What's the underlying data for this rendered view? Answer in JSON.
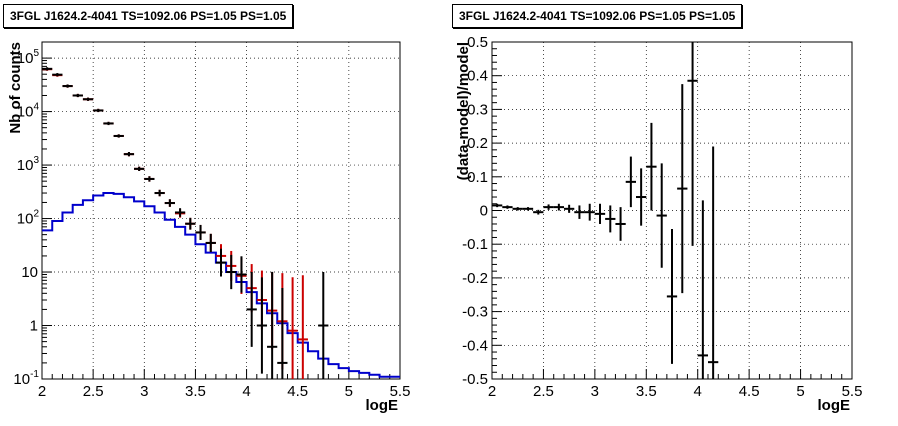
{
  "chart_data": [
    {
      "type": "line",
      "title": "3FGL J1624.2-4041 TS=1092.06 PS=1.05 PS=1.05",
      "xlabel": "logE",
      "ylabel": "Nb of counts",
      "xlim": [
        2,
        5.5
      ],
      "ylim": [
        0.1,
        200000
      ],
      "yscale": "log",
      "grid": true,
      "x_ticks": [
        "2",
        "2.5",
        "3",
        "3.5",
        "4",
        "4.5",
        "5",
        "5.5"
      ],
      "y_ticks": [
        {
          "value": 0.1,
          "label": "10",
          "exp": "-1"
        },
        {
          "value": 1,
          "label": "1",
          "exp": ""
        },
        {
          "value": 10,
          "label": "10",
          "exp": ""
        },
        {
          "value": 100,
          "label": "10",
          "exp": "2"
        },
        {
          "value": 1000,
          "label": "10",
          "exp": "3"
        },
        {
          "value": 10000,
          "label": "10",
          "exp": "4"
        },
        {
          "value": 100000,
          "label": "10",
          "exp": "5"
        }
      ],
      "bin_width": 0.1,
      "series": [
        {
          "color": "#0000cc",
          "style": "step",
          "x": [
            2.05,
            2.15,
            2.25,
            2.35,
            2.45,
            2.55,
            2.65,
            2.75,
            2.85,
            2.95,
            3.05,
            3.15,
            3.25,
            3.35,
            3.45,
            3.55,
            3.65,
            3.75,
            3.85,
            3.95,
            4.05,
            4.15,
            4.25,
            4.35,
            4.45,
            4.55,
            4.65,
            4.75,
            4.85,
            4.95,
            5.05,
            5.15,
            5.25,
            5.35,
            5.45
          ],
          "y": [
            60,
            90,
            130,
            180,
            220,
            270,
            300,
            290,
            250,
            210,
            170,
            130,
            95,
            70,
            50,
            33,
            23,
            15,
            10,
            6.5,
            4.2,
            2.6,
            1.7,
            1.1,
            0.72,
            0.48,
            0.33,
            0.24,
            0.19,
            0.16,
            0.14,
            0.13,
            0.12,
            0.11,
            0.11
          ]
        },
        {
          "color": "#cc0000",
          "style": "errorbar",
          "x": [
            2.05,
            2.15,
            2.25,
            2.35,
            2.45,
            2.55,
            2.65,
            2.75,
            2.85,
            2.95,
            3.05,
            3.15,
            3.25,
            3.35,
            3.45,
            3.55,
            3.65,
            3.75,
            3.85,
            3.95,
            4.05,
            4.15,
            4.25,
            4.35,
            4.45,
            4.55
          ],
          "y": [
            62000,
            48000,
            30000,
            20000,
            17000,
            10500,
            6000,
            3500,
            1600,
            850,
            550,
            300,
            195,
            125,
            80,
            55,
            35,
            20,
            13,
            8.5,
            5,
            3,
            1.9,
            1.2,
            0.8,
            0.55
          ],
          "yerr": [
            0.03,
            0.03,
            0.03,
            0.03,
            0.03,
            0.03,
            0.03,
            0.03,
            0.04,
            0.04,
            0.05,
            0.06,
            0.07,
            0.08,
            0.11,
            0.14,
            0.17,
            0.22,
            0.28,
            0.34,
            0.45,
            0.55,
            0.72,
            0.9,
            1.0,
            1.2
          ]
        },
        {
          "color": "#000000",
          "style": "errorbar",
          "x": [
            2.05,
            2.15,
            2.25,
            2.35,
            2.45,
            2.55,
            2.65,
            2.75,
            2.85,
            2.95,
            3.05,
            3.15,
            3.25,
            3.35,
            3.45,
            3.55,
            3.65,
            3.75,
            3.85,
            3.95,
            4.05,
            4.15,
            4.25,
            4.35,
            4.75
          ],
          "y": [
            63000,
            49000,
            30000,
            20000,
            17000,
            10500,
            6000,
            3500,
            1600,
            850,
            550,
            300,
            195,
            130,
            80,
            55,
            35,
            15,
            10,
            9,
            2,
            1,
            0.4,
            0.2,
            1
          ],
          "yerr": [
            0.03,
            0.03,
            0.03,
            0.03,
            0.03,
            0.03,
            0.03,
            0.03,
            0.04,
            0.04,
            0.05,
            0.06,
            0.07,
            0.08,
            0.11,
            0.14,
            0.17,
            0.26,
            0.32,
            0.34,
            0.7,
            0.9,
            1.4,
            1.4,
            1.0
          ]
        }
      ]
    },
    {
      "type": "scatter",
      "title": "3FGL J1624.2-4041 TS=1092.06 PS=1.05 PS=1.05",
      "xlabel": "logE",
      "ylabel": "(data-model)/model",
      "xlim": [
        2,
        5.5
      ],
      "ylim": [
        -0.5,
        0.5
      ],
      "grid": true,
      "x_ticks": [
        "2",
        "2.5",
        "3",
        "3.5",
        "4",
        "4.5",
        "5",
        "5.5"
      ],
      "y_ticks": [
        "-0.5",
        "-0.4",
        "-0.3",
        "-0.2",
        "-0.1",
        "0",
        "0.1",
        "0.2",
        "0.3",
        "0.4",
        "0.5"
      ],
      "bin_width": 0.1,
      "series": [
        {
          "color": "#000000",
          "style": "errorbar",
          "x": [
            2.05,
            2.15,
            2.25,
            2.35,
            2.45,
            2.55,
            2.65,
            2.75,
            2.85,
            2.95,
            3.05,
            3.15,
            3.25,
            3.35,
            3.45,
            3.55,
            3.65,
            3.75,
            3.85,
            3.95,
            4.05,
            4.15
          ],
          "y": [
            0.015,
            0.01,
            0.005,
            0.005,
            -0.005,
            0.01,
            0.01,
            0.005,
            -0.005,
            -0.005,
            -0.01,
            -0.025,
            -0.04,
            0.085,
            0.04,
            0.13,
            -0.015,
            -0.255,
            0.065,
            0.385,
            -0.43,
            -0.45
          ],
          "yerr": [
            0.005,
            0.005,
            0.005,
            0.005,
            0.007,
            0.008,
            0.01,
            0.012,
            0.02,
            0.025,
            0.03,
            0.04,
            0.05,
            0.075,
            0.085,
            0.13,
            0.155,
            0.2,
            0.31,
            0.49,
            0.46,
            0.64
          ]
        }
      ]
    }
  ]
}
